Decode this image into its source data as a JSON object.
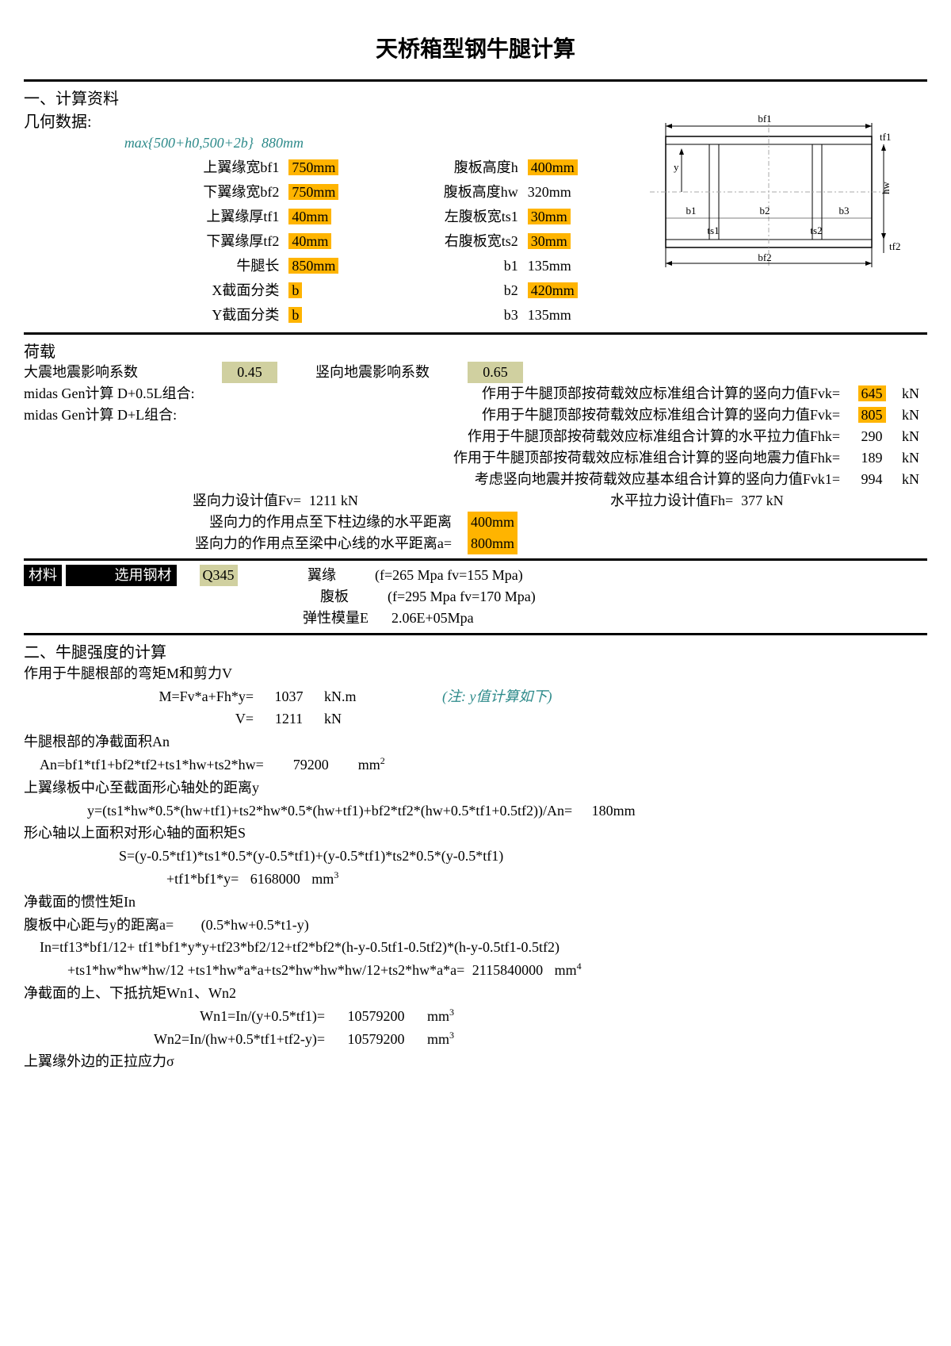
{
  "title": "天桥箱型钢牛腿计算",
  "section1": {
    "head": "一、计算资料",
    "geom_label": "几何数据:",
    "max_formula": "max{500+h0,500+2b}",
    "max_value": "880mm",
    "rows": [
      {
        "l1": "上翼缘宽bf1",
        "v1": "750mm",
        "l2": "腹板高度h",
        "v2": "400mm",
        "hl1": true,
        "hl2": true
      },
      {
        "l1": "下翼缘宽bf2",
        "v1": "750mm",
        "l2": "腹板高度hw",
        "v2": "320mm",
        "hl1": true,
        "hl2": false
      },
      {
        "l1": "上翼缘厚tf1",
        "v1": "40mm",
        "l2": "左腹板宽ts1",
        "v2": "30mm",
        "hl1": true,
        "hl2": true
      },
      {
        "l1": "下翼缘厚tf2",
        "v1": "40mm",
        "l2": "右腹板宽ts2",
        "v2": "30mm",
        "hl1": true,
        "hl2": true
      },
      {
        "l1": "牛腿长",
        "v1": "850mm",
        "l2": "b1",
        "v2": "135mm",
        "hl1": true,
        "hl2": false
      },
      {
        "l1": "X截面分类",
        "v1": "b",
        "l2": "b2",
        "v2": "420mm",
        "hl1": true,
        "hl2": true
      },
      {
        "l1": "Y截面分类",
        "v1": "b",
        "l2": "b3",
        "v2": "135mm",
        "hl1": true,
        "hl2": false
      }
    ],
    "diagram": {
      "bf1": "bf1",
      "bf2": "bf2",
      "b1": "b1",
      "b2": "b2",
      "b3": "b3",
      "ts1": "ts1",
      "ts2": "ts2",
      "hw": "hw",
      "tf1": "tf1",
      "tf2": "tf2",
      "y_arrow": "y"
    }
  },
  "load": {
    "head": "荷载",
    "r1_l": "大震地震影响系数",
    "r1_v1": "0.45",
    "r1_l2": "竖向地震影响系数",
    "r1_v2": "0.65",
    "rows": [
      {
        "l": "midas Gen计算 D+0.5L组合:",
        "t": "作用于牛腿顶部按荷载效应标准组合计算的竖向力值Fvk=",
        "v": "645",
        "u": "kN",
        "hl": true
      },
      {
        "l": "midas Gen计算 D+L组合:",
        "t": "作用于牛腿顶部按荷载效应标准组合计算的竖向力值Fvk=",
        "v": "805",
        "u": "kN",
        "hl": true
      },
      {
        "l": "",
        "t": "作用于牛腿顶部按荷载效应标准组合计算的水平拉力值Fhk=",
        "v": "290",
        "u": "kN",
        "hl": false
      },
      {
        "l": "",
        "t": "作用于牛腿顶部按荷载效应标准组合计算的竖向地震力值Fhk=",
        "v": "189",
        "u": "kN",
        "hl": false
      },
      {
        "l": "",
        "t": "考虑竖向地震并按荷载效应基本组合计算的竖向力值Fvk1=",
        "v": "994",
        "u": "kN",
        "hl": false
      }
    ],
    "fv_l": "竖向力设计值Fv=",
    "fv_v": "1211 kN",
    "fh_l": "水平拉力设计值Fh=",
    "fh_v": "377 kN",
    "dist1_l": "竖向力的作用点至下柱边缘的水平距离",
    "dist1_v": "400mm",
    "dist2_l": "竖向力的作用点至梁中心线的水平距离a=",
    "dist2_v": "800mm"
  },
  "material": {
    "head": "材料",
    "steel_l": "选用钢材",
    "steel_v": "Q345",
    "flange_l": "翼缘",
    "flange_v": "(f=265 Mpa  fv=155 Mpa)",
    "web_l": "腹板",
    "web_v": "(f=295 Mpa  fv=170 Mpa)",
    "e_l": "弹性模量E",
    "e_v": "2.06E+05Mpa"
  },
  "section2": {
    "head": "二、牛腿强度的计算",
    "l1": "作用于牛腿根部的弯矩M和剪力V",
    "m_l": "M=Fv*a+Fh*y=",
    "m_v": "1037",
    "m_u": "kN.m",
    "m_note": "(注: y值计算如下)",
    "v_l": "V=",
    "v_v": "1211",
    "v_u": "kN",
    "an_head": "牛腿根部的净截面积An",
    "an_f": "An=bf1*tf1+bf2*tf2+ts1*hw+ts2*hw=",
    "an_v": "79200",
    "an_u": "mm",
    "an_exp": "2",
    "y_head": "上翼缘板中心至截面形心轴处的距离y",
    "y_f": "y=(ts1*hw*0.5*(hw+tf1)+ts2*hw*0.5*(hw+tf1)+bf2*tf2*(hw+0.5*tf1+0.5tf2))/An=",
    "y_v": "180mm",
    "s_head": "形心轴以上面积对形心轴的面积矩S",
    "s_f1": "S=(y-0.5*tf1)*ts1*0.5*(y-0.5*tf1)+(y-0.5*tf1)*ts2*0.5*(y-0.5*tf1)",
    "s_f2": "+tf1*bf1*y=",
    "s_v": "6168000",
    "s_u": "mm",
    "s_exp": "3",
    "in_head": "净截面的惯性矩In",
    "a_l": "腹板中心距与y的距离a=",
    "a_f": "(0.5*hw+0.5*t1-y)",
    "in_f1": "In=tf13*bf1/12+ tf1*bf1*y*y+tf23*bf2/12+tf2*bf2*(h-y-0.5tf1-0.5tf2)*(h-y-0.5tf1-0.5tf2)",
    "in_f2": "+ts1*hw*hw*hw/12 +ts1*hw*a*a+ts2*hw*hw*hw/12+ts2*hw*a*a=",
    "in_v": "2115840000",
    "in_u": "mm",
    "in_exp": "4",
    "wn_head": "净截面的上、下抵抗矩Wn1、Wn2",
    "wn1_l": "Wn1=In/(y+0.5*tf1)=",
    "wn1_v": "10579200",
    "wn1_u": "mm",
    "wn1_exp": "3",
    "wn2_l": "Wn2=In/(hw+0.5*tf1+tf2-y)=",
    "wn2_v": "10579200",
    "wn2_u": "mm",
    "wn2_exp": "3",
    "sigma_head": "上翼缘外边的正拉应力σ"
  }
}
